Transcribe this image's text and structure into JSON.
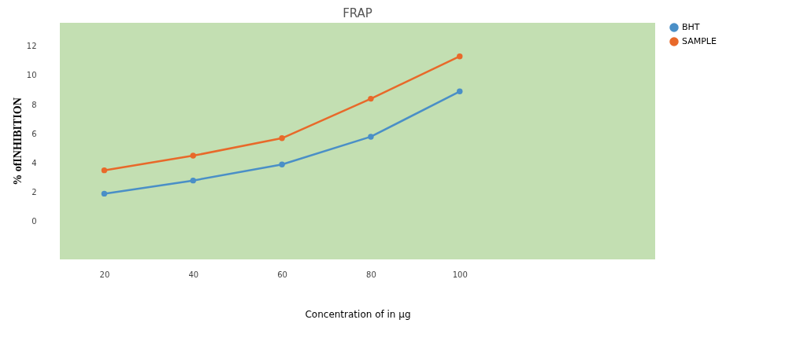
{
  "chart_data": {
    "type": "line",
    "title": "FRAP",
    "xlabel": "Concentration of in μg",
    "ylabel": "% ofINHIBITION",
    "x": [
      20,
      40,
      60,
      80,
      100
    ],
    "series": [
      {
        "name": "BHT",
        "color": "#4a8fc7",
        "values": [
          1.9,
          2.8,
          3.9,
          5.8,
          8.9
        ]
      },
      {
        "name": "SAMPLE",
        "color": "#e8692a",
        "values": [
          3.5,
          4.5,
          5.7,
          8.4,
          11.3
        ]
      }
    ],
    "xlim": [
      10,
      144
    ],
    "xticks": [
      20,
      40,
      60,
      80,
      100
    ],
    "ylim": [
      -2.6,
      13.6
    ],
    "yticks": [
      0,
      2,
      4,
      6,
      8,
      10,
      12
    ],
    "grid": false,
    "legend": "right",
    "marker": "circle",
    "line_style": "solid"
  }
}
